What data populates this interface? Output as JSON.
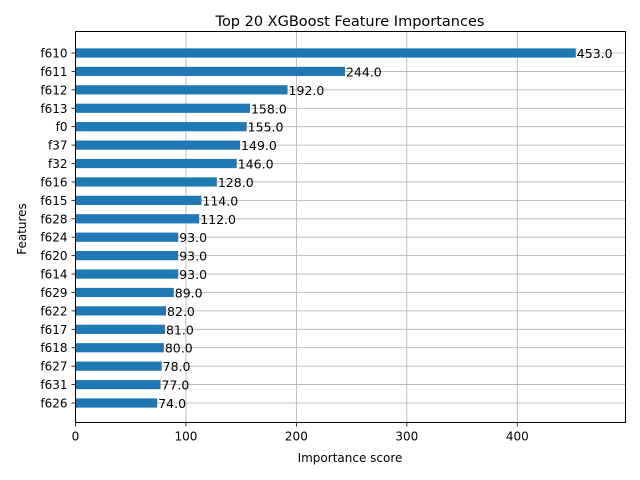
{
  "chart_data": {
    "type": "bar",
    "orientation": "horizontal",
    "title": "Top 20 XGBoost Feature Importances",
    "xlabel": "Importance score",
    "ylabel": "Features",
    "xlim": [
      0,
      498
    ],
    "xticks": [
      0,
      100,
      200,
      300,
      400
    ],
    "grid": true,
    "bar_color": "#1f77b4",
    "categories": [
      "f610",
      "f611",
      "f612",
      "f613",
      "f0",
      "f37",
      "f32",
      "f616",
      "f615",
      "f628",
      "f624",
      "f620",
      "f614",
      "f629",
      "f622",
      "f617",
      "f618",
      "f627",
      "f631",
      "f626"
    ],
    "values": [
      453.0,
      244.0,
      192.0,
      158.0,
      155.0,
      149.0,
      146.0,
      128.0,
      114.0,
      112.0,
      93.0,
      93.0,
      93.0,
      89.0,
      82.0,
      81.0,
      80.0,
      78.0,
      77.0,
      74.0
    ],
    "value_labels": [
      "453.0",
      "244.0",
      "192.0",
      "158.0",
      "155.0",
      "149.0",
      "146.0",
      "128.0",
      "114.0",
      "112.0",
      "93.0",
      "93.0",
      "93.0",
      "89.0",
      "82.0",
      "81.0",
      "80.0",
      "78.0",
      "77.0",
      "74.0"
    ]
  }
}
